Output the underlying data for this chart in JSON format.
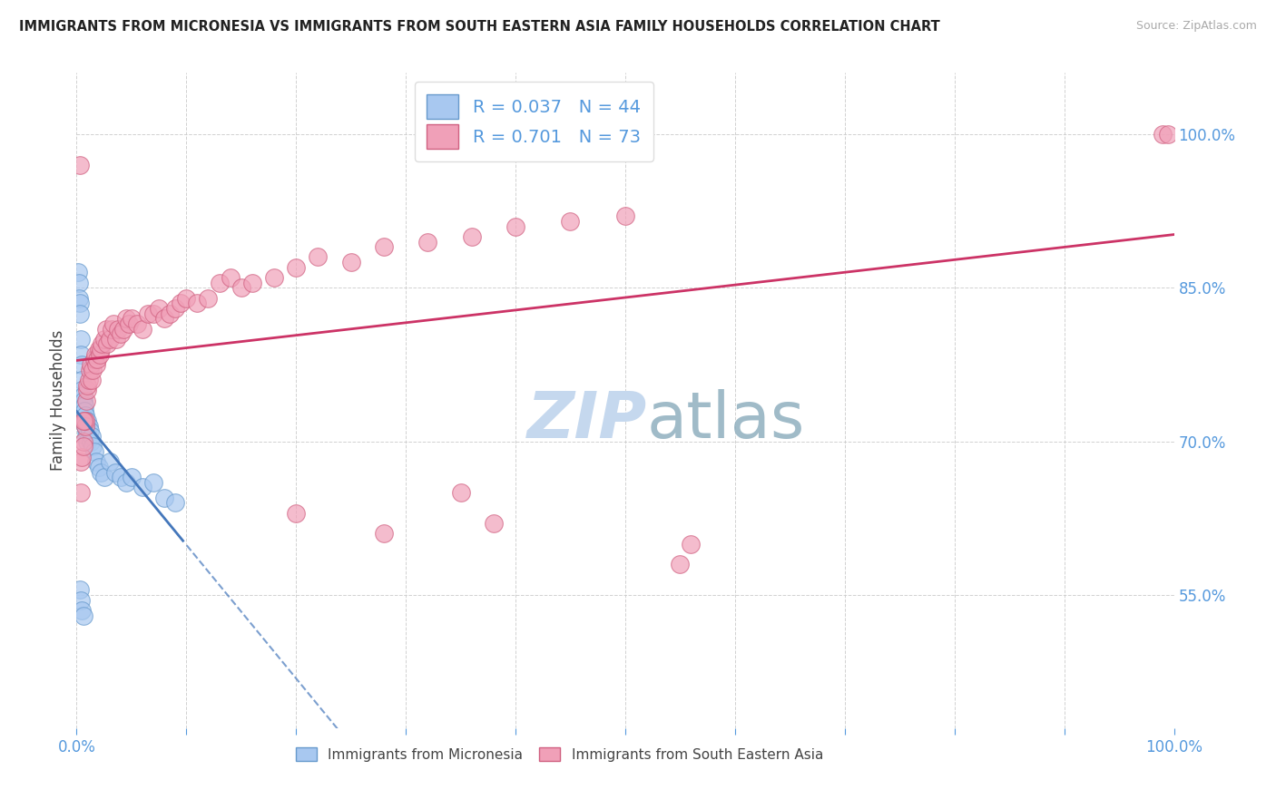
{
  "title": "IMMIGRANTS FROM MICRONESIA VS IMMIGRANTS FROM SOUTH EASTERN ASIA FAMILY HOUSEHOLDS CORRELATION CHART",
  "source": "Source: ZipAtlas.com",
  "ylabel": "Family Households",
  "legend_labels": [
    "Immigrants from Micronesia",
    "Immigrants from South Eastern Asia"
  ],
  "r_micronesia": 0.037,
  "n_micronesia": 44,
  "r_sea": 0.701,
  "n_sea": 73,
  "color_micronesia_fill": "#A8C8F0",
  "color_micronesia_edge": "#6699CC",
  "color_sea_fill": "#F0A0B8",
  "color_sea_edge": "#D06080",
  "line_color_micronesia": "#4477BB",
  "line_color_sea": "#CC3366",
  "watermark_color": "#C5D8EE",
  "background_color": "#FFFFFF",
  "xlim": [
    0.0,
    1.0
  ],
  "ylim": [
    0.42,
    1.06
  ],
  "yticks": [
    0.55,
    0.7,
    0.85,
    1.0
  ],
  "xticks": [
    0.0,
    0.1,
    0.2,
    0.3,
    0.4,
    0.5,
    0.6,
    0.7,
    0.8,
    0.9,
    1.0
  ],
  "micro_x": [
    0.001,
    0.002,
    0.002,
    0.003,
    0.003,
    0.004,
    0.004,
    0.005,
    0.005,
    0.005,
    0.006,
    0.006,
    0.007,
    0.007,
    0.007,
    0.008,
    0.008,
    0.009,
    0.009,
    0.01,
    0.01,
    0.011,
    0.012,
    0.013,
    0.014,
    0.015,
    0.016,
    0.018,
    0.02,
    0.022,
    0.025,
    0.03,
    0.035,
    0.04,
    0.045,
    0.05,
    0.06,
    0.07,
    0.08,
    0.09,
    0.003,
    0.004,
    0.005,
    0.006
  ],
  "micro_y": [
    0.865,
    0.855,
    0.84,
    0.835,
    0.825,
    0.8,
    0.785,
    0.775,
    0.76,
    0.75,
    0.745,
    0.74,
    0.735,
    0.73,
    0.72,
    0.725,
    0.715,
    0.71,
    0.705,
    0.72,
    0.7,
    0.715,
    0.71,
    0.7,
    0.705,
    0.695,
    0.69,
    0.68,
    0.675,
    0.67,
    0.665,
    0.68,
    0.67,
    0.665,
    0.66,
    0.665,
    0.655,
    0.66,
    0.645,
    0.64,
    0.555,
    0.545,
    0.535,
    0.53
  ],
  "sea_x": [
    0.003,
    0.004,
    0.005,
    0.006,
    0.006,
    0.007,
    0.008,
    0.008,
    0.009,
    0.01,
    0.01,
    0.011,
    0.012,
    0.013,
    0.014,
    0.015,
    0.016,
    0.017,
    0.018,
    0.019,
    0.02,
    0.021,
    0.022,
    0.023,
    0.025,
    0.027,
    0.028,
    0.03,
    0.032,
    0.034,
    0.036,
    0.038,
    0.04,
    0.043,
    0.045,
    0.048,
    0.05,
    0.055,
    0.06,
    0.065,
    0.07,
    0.075,
    0.08,
    0.085,
    0.09,
    0.095,
    0.1,
    0.11,
    0.12,
    0.13,
    0.14,
    0.15,
    0.16,
    0.18,
    0.2,
    0.22,
    0.25,
    0.28,
    0.32,
    0.36,
    0.4,
    0.45,
    0.5,
    0.004,
    0.56,
    0.006,
    0.2,
    0.28,
    0.35,
    0.38,
    0.55,
    0.99,
    0.995
  ],
  "sea_y": [
    0.97,
    0.68,
    0.685,
    0.7,
    0.695,
    0.72,
    0.715,
    0.72,
    0.74,
    0.75,
    0.755,
    0.76,
    0.77,
    0.775,
    0.76,
    0.77,
    0.78,
    0.785,
    0.775,
    0.78,
    0.79,
    0.785,
    0.79,
    0.795,
    0.8,
    0.81,
    0.795,
    0.8,
    0.81,
    0.815,
    0.8,
    0.81,
    0.805,
    0.81,
    0.82,
    0.815,
    0.82,
    0.815,
    0.81,
    0.825,
    0.825,
    0.83,
    0.82,
    0.825,
    0.83,
    0.835,
    0.84,
    0.835,
    0.84,
    0.855,
    0.86,
    0.85,
    0.855,
    0.86,
    0.87,
    0.88,
    0.875,
    0.89,
    0.895,
    0.9,
    0.91,
    0.915,
    0.92,
    0.65,
    0.6,
    0.72,
    0.63,
    0.61,
    0.65,
    0.62,
    0.58,
    1.0,
    1.0
  ]
}
